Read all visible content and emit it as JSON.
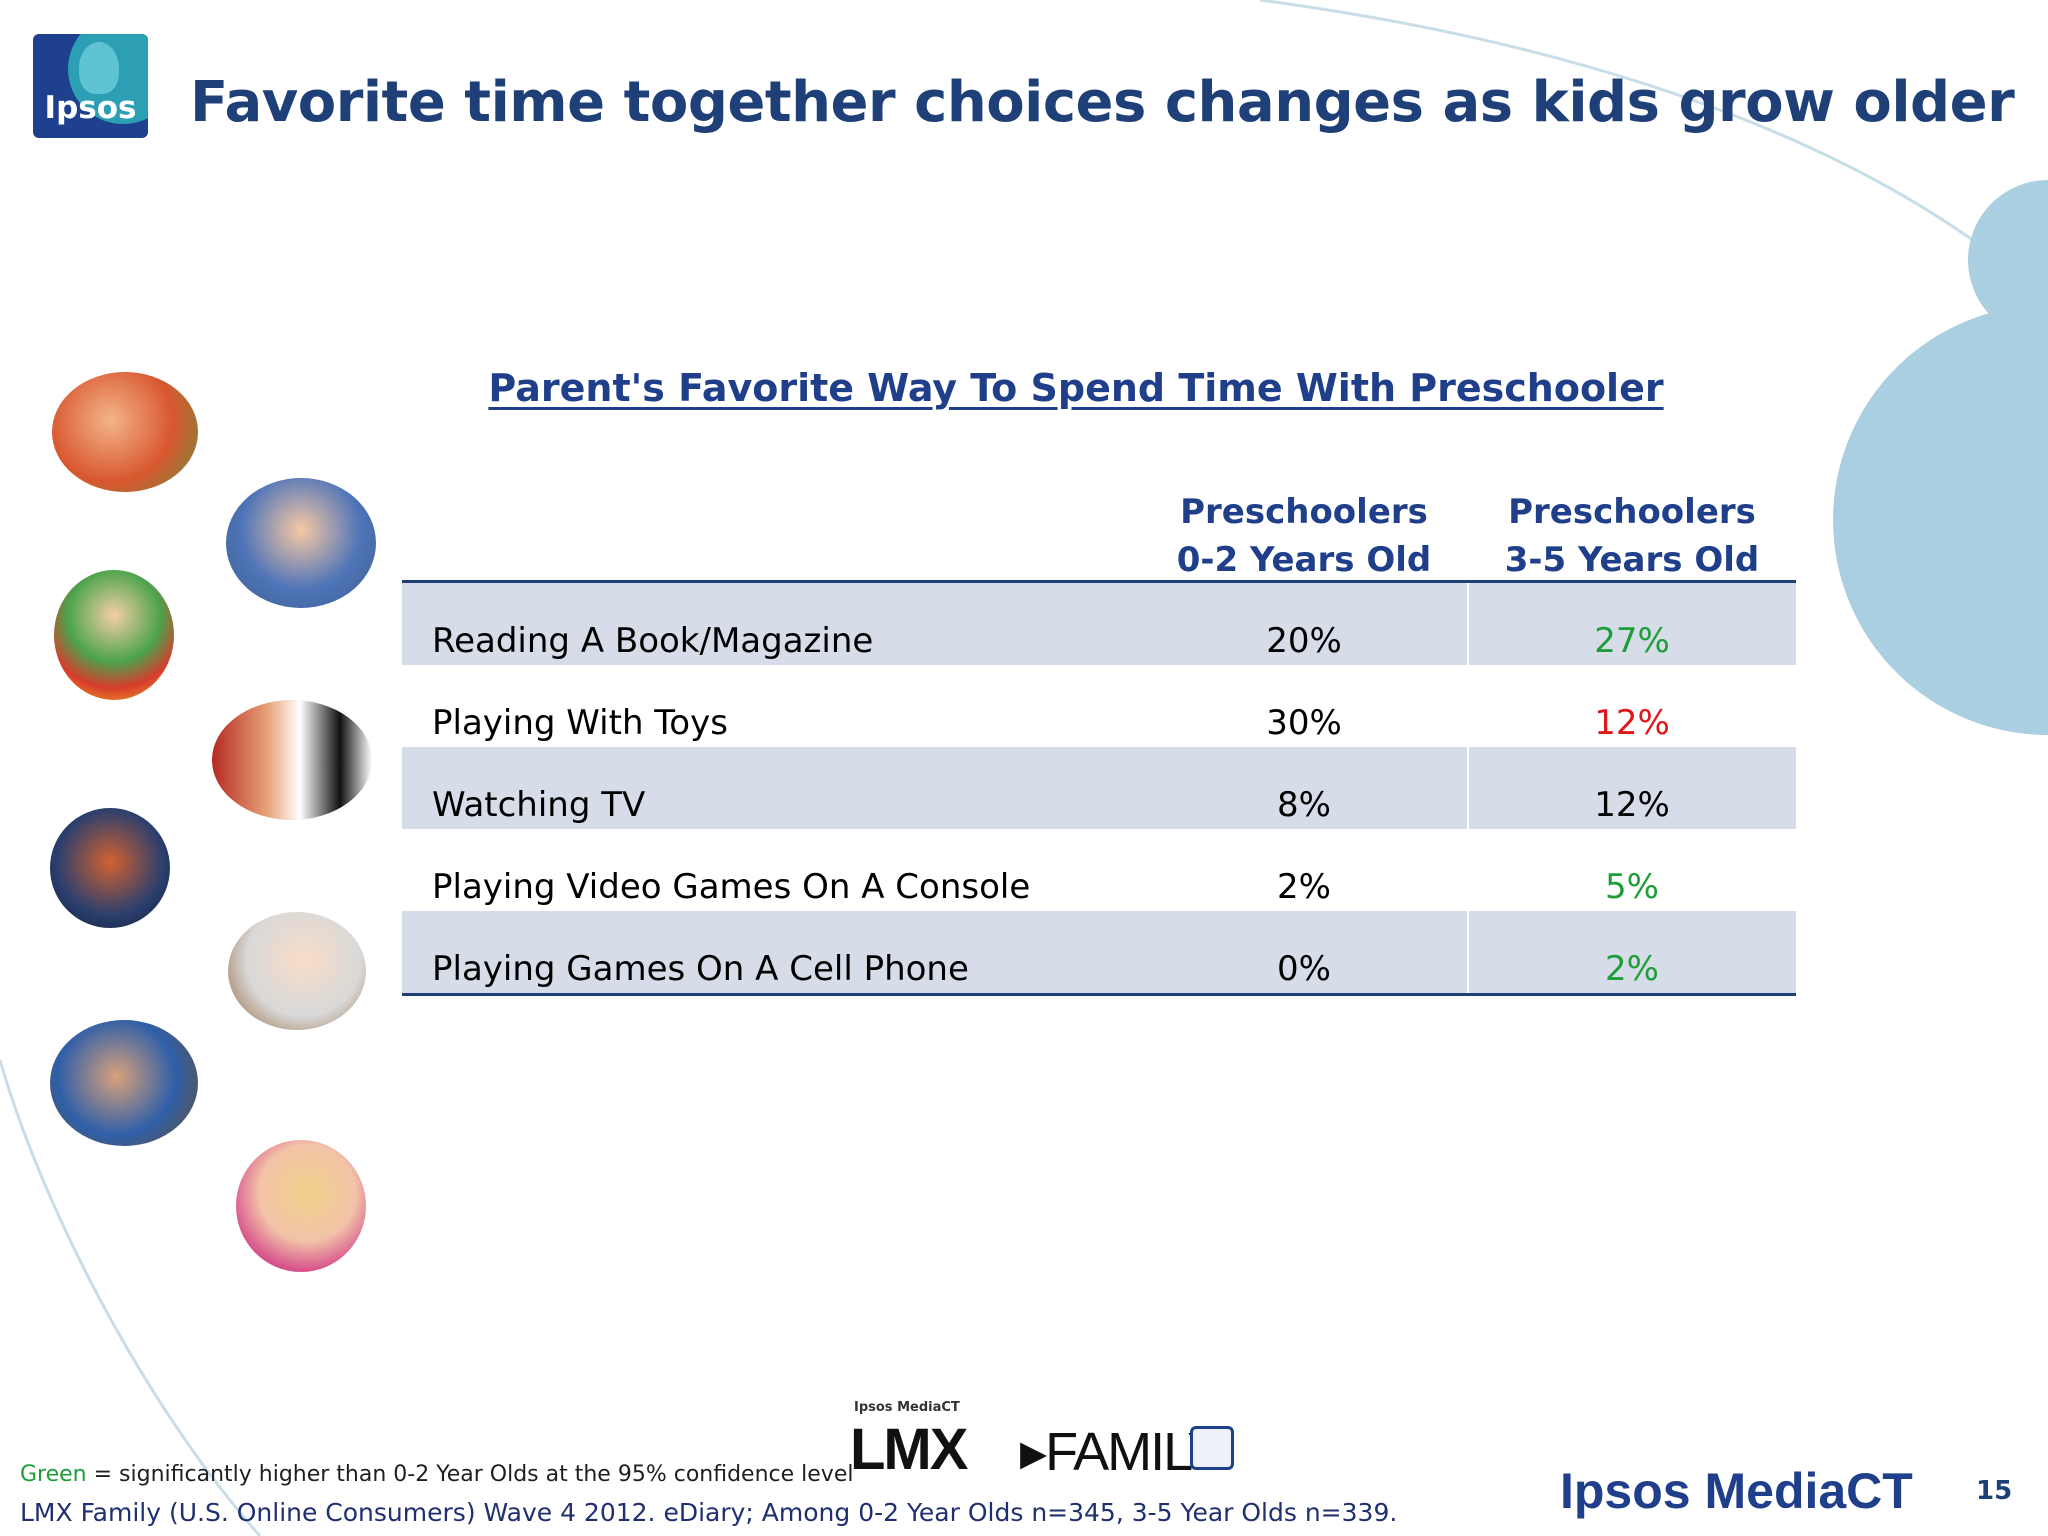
{
  "logo": {
    "text": "Ipsos"
  },
  "title": "Favorite time together choices changes as kids grow older",
  "table": {
    "title": "Parent's Favorite Way To Spend Time With Preschooler",
    "headers": [
      {
        "line1": "Preschoolers",
        "line2": "0-2 Years Old"
      },
      {
        "line1": "Preschoolers",
        "line2": "3-5 Years Old"
      }
    ],
    "rows": [
      {
        "label": "Reading A Book/Magazine",
        "v1": "20%",
        "v2": "27%",
        "v2_color": "#1e9e3a"
      },
      {
        "label": "Playing With Toys",
        "v1": "30%",
        "v2": "12%",
        "v2_color": "#e0161b"
      },
      {
        "label": "Watching TV",
        "v1": "8%",
        "v2": "12%",
        "v2_color": "#000000"
      },
      {
        "label": "Playing Video Games On A Console",
        "v1": "2%",
        "v2": "5%",
        "v2_color": "#1e9e3a"
      },
      {
        "label": "Playing Games On A Cell Phone",
        "v1": "0%",
        "v2": "2%",
        "v2_color": "#1e9e3a"
      }
    ]
  },
  "footnote": {
    "green_word": "Green",
    "green_rest": " = significantly higher than 0-2 Year Olds at the 95% confidence level",
    "source": "LMX Family (U.S. Online Consumers) Wave 4 2012.  eDiary; Among 0-2 Year Olds n=345, 3-5 Year Olds n=339."
  },
  "lmx_logo": {
    "small": "Ipsos MediaCT",
    "main": "LMX",
    "family": "▸FAMILY"
  },
  "brand": "Ipsos MediaCT",
  "page_number": "15",
  "colors": {
    "title": "#1f3f78",
    "accent_blue": "#1f3f8a",
    "shade": "#d6dde8",
    "significant_high": "#1e9e3a",
    "significant_low": "#e0161b",
    "decor_circle": "#a9cfe0"
  }
}
